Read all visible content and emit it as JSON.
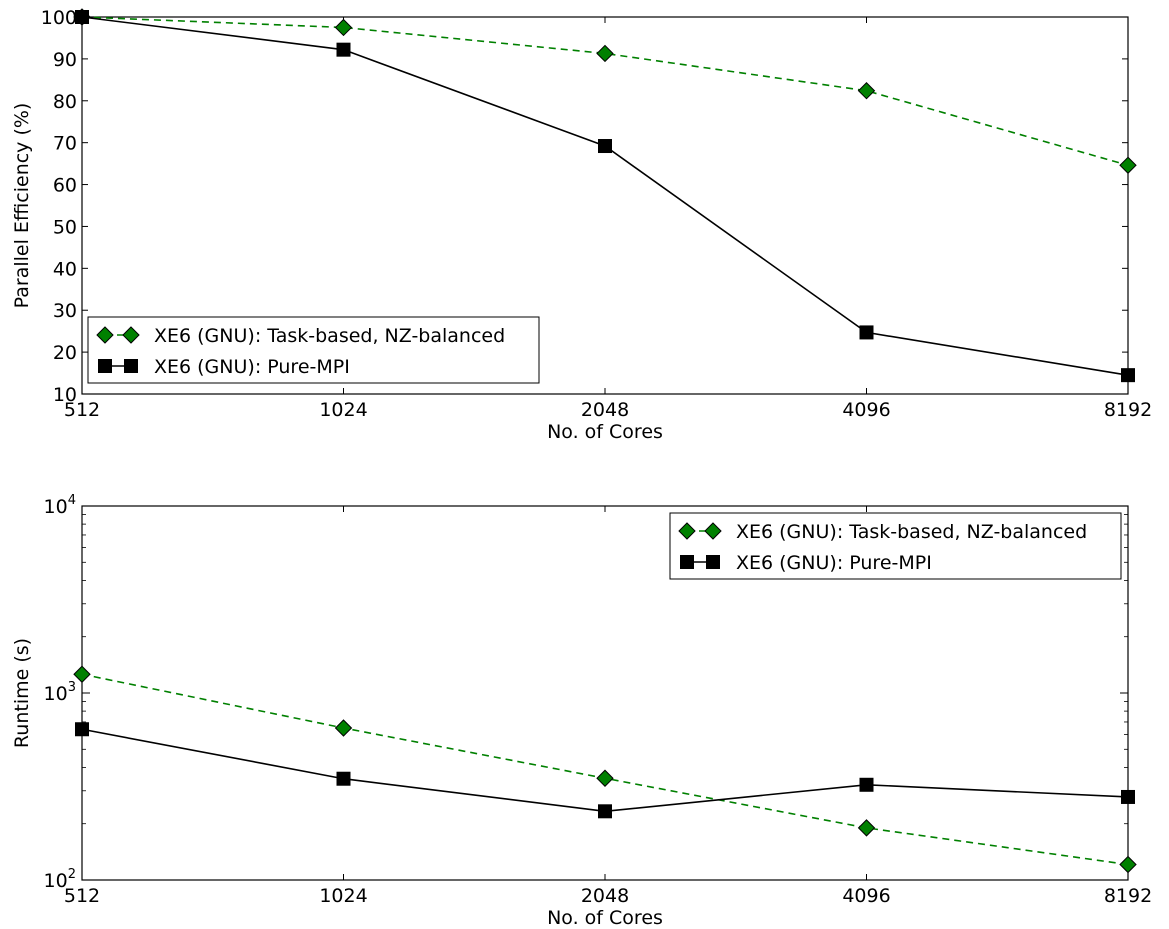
{
  "chart_data": [
    {
      "type": "line",
      "x": [
        512,
        1024,
        2048,
        4096,
        8192
      ],
      "xticks": [
        "512",
        "1024",
        "2048",
        "4096",
        "8192"
      ],
      "xscale": "log2",
      "xlabel": "No. of Cores",
      "ylabel": "Parallel Efficiency (%)",
      "ylim": [
        10,
        100
      ],
      "yticks": [
        10,
        20,
        30,
        40,
        50,
        60,
        70,
        80,
        90,
        100
      ],
      "yscale": "linear",
      "grid": false,
      "legend_position": "bottom-left",
      "series": [
        {
          "name": "XE6 (GNU): Task-based, NZ-balanced",
          "values": [
            100,
            97.5,
            91.3,
            82.4,
            64.6
          ],
          "color": "#008000",
          "marker": "diamond",
          "linestyle": "dashed"
        },
        {
          "name": "XE6 (GNU): Pure-MPI",
          "values": [
            100,
            92.2,
            69.2,
            24.7,
            14.5
          ],
          "color": "#000000",
          "marker": "square",
          "linestyle": "solid"
        }
      ]
    },
    {
      "type": "line",
      "x": [
        512,
        1024,
        2048,
        4096,
        8192
      ],
      "xticks": [
        "512",
        "1024",
        "2048",
        "4096",
        "8192"
      ],
      "xscale": "log2",
      "xlabel": "No. of Cores",
      "ylabel": "Runtime (s)",
      "ylim": [
        100,
        10000
      ],
      "yscale": "log10",
      "ytick_labels": [
        {
          "value": 100,
          "base": "10",
          "exp": "2"
        },
        {
          "value": 1000,
          "base": "10",
          "exp": "3"
        },
        {
          "value": 10000,
          "base": "10",
          "exp": "4"
        }
      ],
      "grid": false,
      "legend_position": "top-right",
      "series": [
        {
          "name": "XE6 (GNU): Task-based, NZ-balanced",
          "values": [
            1260,
            650,
            350,
            190,
            121
          ],
          "color": "#008000",
          "marker": "diamond",
          "linestyle": "dashed"
        },
        {
          "name": "XE6 (GNU): Pure-MPI",
          "values": [
            640,
            348,
            233,
            323,
            278
          ],
          "color": "#000000",
          "marker": "square",
          "linestyle": "solid"
        }
      ]
    }
  ]
}
